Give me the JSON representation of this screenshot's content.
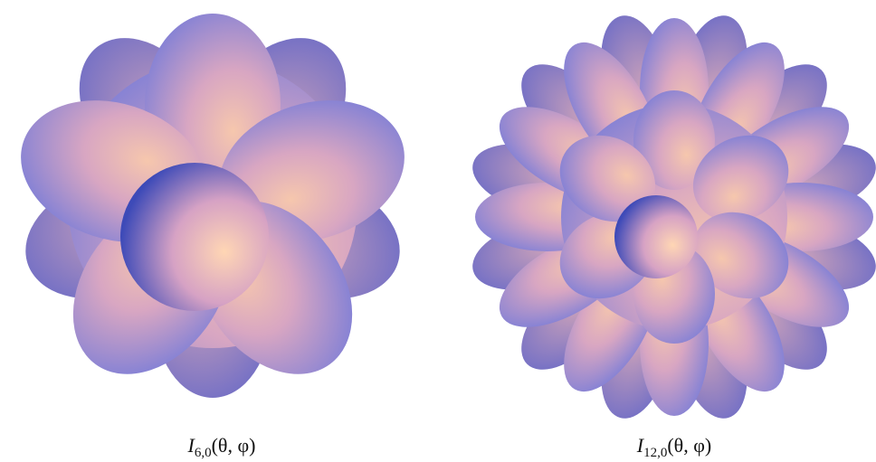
{
  "figure": {
    "panels": [
      {
        "caption": {
          "symbol": "I",
          "subscript": "6,0",
          "args": "(θ, φ)"
        }
      },
      {
        "caption": {
          "symbol": "I",
          "subscript": "12,0",
          "args": "(θ, φ)"
        }
      }
    ]
  }
}
